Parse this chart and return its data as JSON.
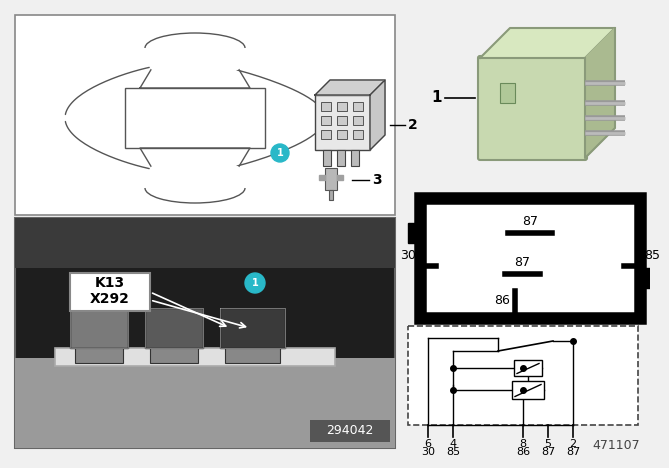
{
  "bg_color": "#f0f0f0",
  "doc_number": "471107",
  "photo_label": "294042",
  "cyan_color": "#29b8c8",
  "relay_green": "#c8d9b0",
  "k13_text": "K13",
  "x292_text": "X292",
  "pin_top": "87",
  "pin_mid_left": "30",
  "pin_mid_center": "87",
  "pin_mid_right": "85",
  "pin_bot": "86",
  "circuit_top_pins": [
    "6",
    "4",
    "8",
    "5",
    "2"
  ],
  "circuit_bot_pins": [
    "30",
    "85",
    "86",
    "87",
    "87"
  ]
}
